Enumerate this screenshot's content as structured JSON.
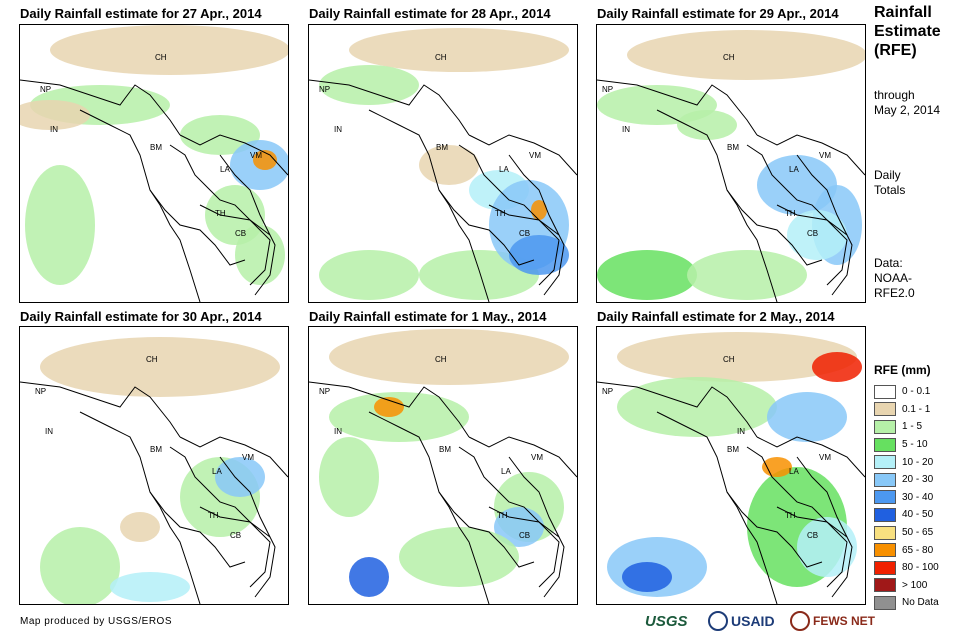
{
  "panels": [
    {
      "title": "Daily Rainfall estimate for 27 Apr., 2014"
    },
    {
      "title": "Daily Rainfall estimate for 28 Apr., 2014"
    },
    {
      "title": "Daily Rainfall estimate for 29 Apr., 2014"
    },
    {
      "title": "Daily Rainfall estimate for 30 Apr., 2014"
    },
    {
      "title": "Daily Rainfall estimate for 1 May., 2014"
    },
    {
      "title": "Daily Rainfall estimate for 2 May., 2014"
    }
  ],
  "country_labels": {
    "ch": "CH",
    "np": "NP",
    "in": "IN",
    "bm": "BM",
    "la": "LA",
    "vm": "VM",
    "th": "TH",
    "cb": "CB"
  },
  "side": {
    "title_1": "Rainfall",
    "title_2": "Estimate",
    "title_3": "(RFE)",
    "through": "through",
    "date": "May 2, 2014",
    "daily": "Daily",
    "totals": "Totals",
    "data_label": "Data:",
    "source_1": "NOAA-",
    "source_2": "RFE2.0"
  },
  "legend": {
    "title": "RFE (mm)",
    "items": [
      {
        "label": "0 - 0.1",
        "color": "#ffffff"
      },
      {
        "label": "0.1 - 1",
        "color": "#e8d5b0"
      },
      {
        "label": "1 - 5",
        "color": "#b6f0a8"
      },
      {
        "label": "5 - 10",
        "color": "#66e060"
      },
      {
        "label": "10 - 20",
        "color": "#b4f0f8"
      },
      {
        "label": "20 - 30",
        "color": "#88c8f8"
      },
      {
        "label": "30 - 40",
        "color": "#4c98f0"
      },
      {
        "label": "40 - 50",
        "color": "#2060e0"
      },
      {
        "label": "50 - 65",
        "color": "#f8e080"
      },
      {
        "label": "65 - 80",
        "color": "#f89000"
      },
      {
        "label": "80 - 100",
        "color": "#f02000"
      },
      {
        "label": "> 100",
        "color": "#a01818"
      },
      {
        "label": "No Data",
        "color": "#909090"
      }
    ]
  },
  "footer": "Map produced by USGS/EROS",
  "logos": {
    "usgs": "USGS",
    "usaid": "USAID",
    "fews": "FEWS NET"
  }
}
